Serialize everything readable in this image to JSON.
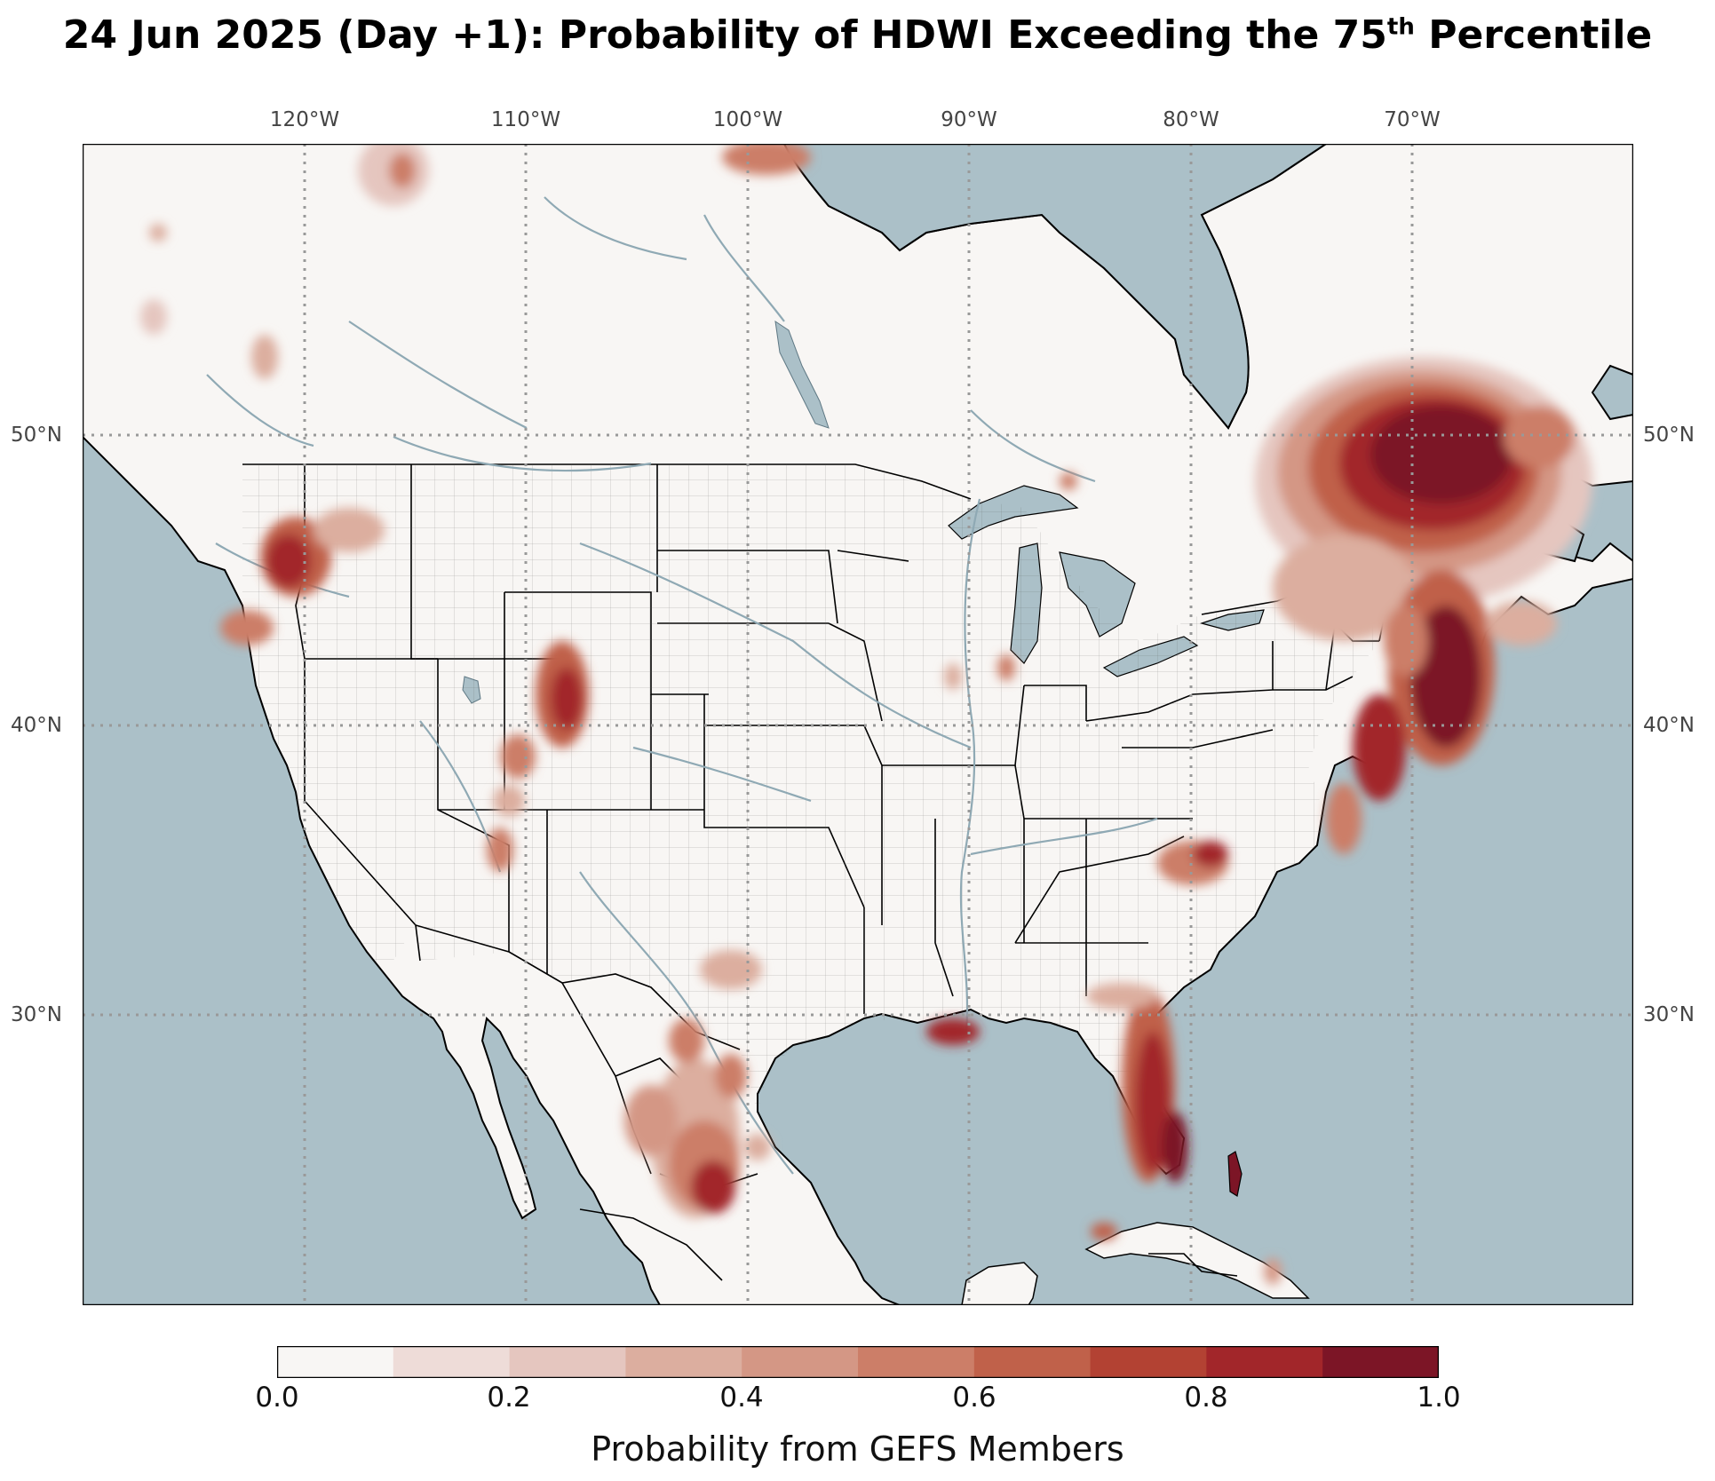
{
  "title": {
    "pre": "24 Jun 2025 (Day +1): Probability of HDWI Exceeding the 75",
    "sup": "th",
    "post": " Percentile"
  },
  "lon_ticks": [
    "120°W",
    "110°W",
    "100°W",
    "90°W",
    "80°W",
    "70°W"
  ],
  "lat_ticks": [
    "50°N",
    "40°N",
    "30°N"
  ],
  "colorbar": {
    "label": "Probability from GEFS Members",
    "ticks": [
      "0.0",
      "0.2",
      "0.4",
      "0.6",
      "0.8",
      "1.0"
    ],
    "levels": [
      0.0,
      0.1,
      0.2,
      0.3,
      0.4,
      0.5,
      0.6,
      0.7,
      0.8,
      0.9,
      1.0
    ],
    "colors": [
      "#f8f6f4",
      "#eedcd8",
      "#e5c6bf",
      "#dcae9f",
      "#d49785",
      "#cc7e68",
      "#c0614a",
      "#b34233",
      "#a2262a",
      "#7c1526"
    ]
  },
  "colors": {
    "ocean": "#abc0c8",
    "land": "#f8f6f4",
    "rivers": "#8fa9b4",
    "borders": "#000000",
    "gridlines": "#999999"
  },
  "map": {
    "projection": "PlateCarree",
    "extent_lon": [
      -130,
      -60
    ],
    "extent_lat": [
      20,
      60
    ]
  }
}
